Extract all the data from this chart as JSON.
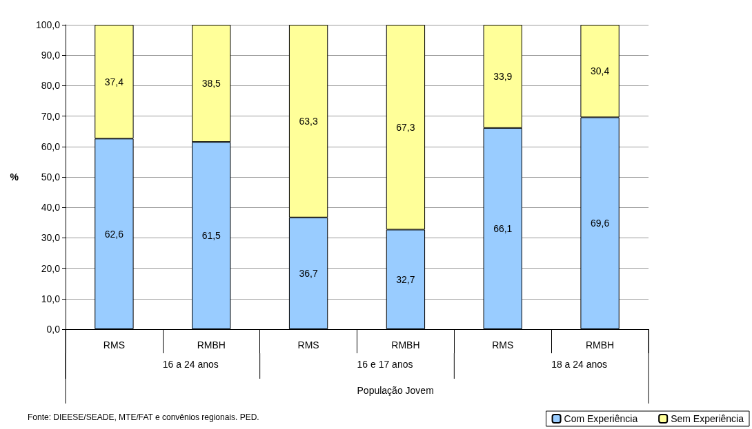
{
  "chart_data": {
    "type": "bar",
    "stacked": true,
    "ylabel": "%",
    "xlabel": "População Jovem",
    "categories": [
      "RMS",
      "RMBH",
      "RMS",
      "RMBH",
      "RMS",
      "RMBH"
    ],
    "series": [
      {
        "name": "Com Experiência",
        "color": "#99ccff",
        "values": [
          62.6,
          61.5,
          36.7,
          32.7,
          66.1,
          69.6
        ],
        "value_labels": [
          "62,6",
          "61,5",
          "36,7",
          "32,7",
          "66,1",
          "69,6"
        ]
      },
      {
        "name": "Sem Experiência",
        "color": "#ffff99",
        "values": [
          37.4,
          38.5,
          63.3,
          67.3,
          33.9,
          30.4
        ],
        "value_labels": [
          "37,4",
          "38,5",
          "63,3",
          "67,3",
          "33,9",
          "30,4"
        ]
      }
    ],
    "ylim": [
      0,
      100
    ],
    "yticks": [
      {
        "value": 0,
        "label": "0,0"
      },
      {
        "value": 10,
        "label": "10,0"
      },
      {
        "value": 20,
        "label": "20,0"
      },
      {
        "value": 30,
        "label": "30,0"
      },
      {
        "value": 40,
        "label": "40,0"
      },
      {
        "value": 50,
        "label": "50,0"
      },
      {
        "value": 60,
        "label": "60,0"
      },
      {
        "value": 70,
        "label": "70,0"
      },
      {
        "value": 80,
        "label": "80,0"
      },
      {
        "value": 90,
        "label": "90,0"
      },
      {
        "value": 100,
        "label": "100,0"
      }
    ],
    "annotations": [
      "16 a 24 anos",
      "16 e 17 anos",
      "18 a 24 anos",
      "Fonte: DIEESE/SEADE, MTE/FAT e convênios regionais. PED."
    ],
    "grid": "y",
    "legend": "bottom right"
  }
}
